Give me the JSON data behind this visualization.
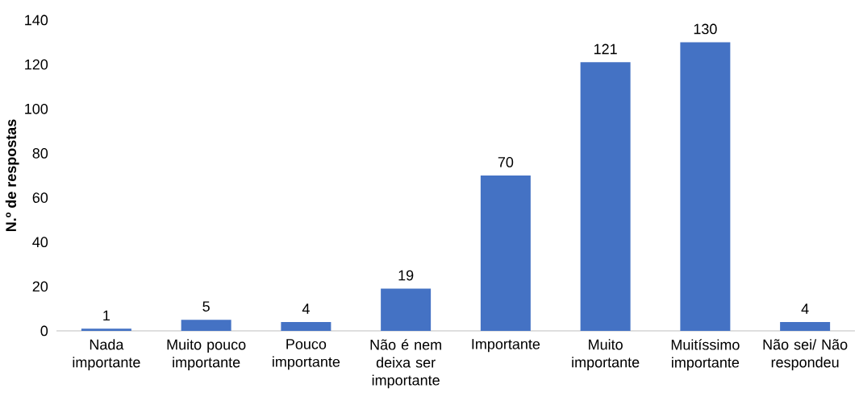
{
  "chart_data": {
    "type": "bar",
    "ylabel": "N.º de respostas",
    "categories": [
      "Nada importante",
      "Muito pouco importante",
      "Pouco importante",
      "Não é nem deixa ser importante",
      "Importante",
      "Muito importante",
      "Muitíssimo importante",
      "Não sei/ Não respondeu"
    ],
    "values": [
      1,
      5,
      4,
      19,
      70,
      121,
      130,
      4
    ],
    "color": "#4472c4",
    "ylim": [
      0,
      140
    ],
    "yticks": [
      0,
      20,
      40,
      60,
      80,
      100,
      120,
      140
    ],
    "data_labels": true
  }
}
